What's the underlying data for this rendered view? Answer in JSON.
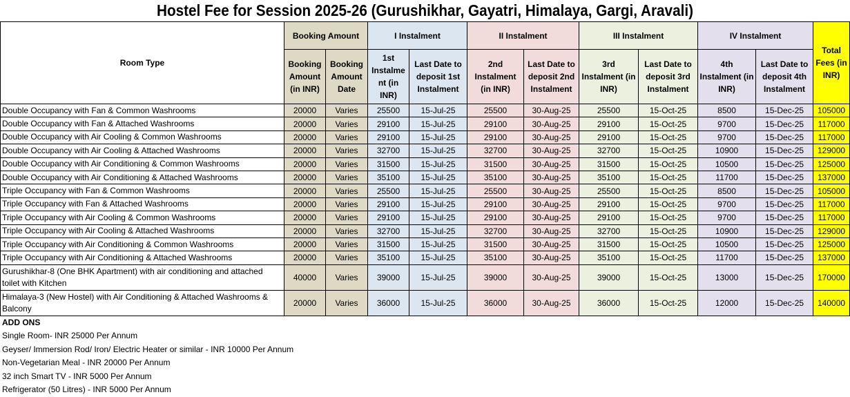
{
  "title": "Hostel Fee for Session 2025-26 (Gurushikhar, Gayatri, Himalaya, Gargi, Aravali)",
  "header": {
    "room_type": "Room Type",
    "booking_group": "Booking Amount",
    "instalment_groups": [
      "I Instalment",
      "II Instalment",
      "III Instalment",
      "IV Instalment"
    ],
    "total": "Total Fees (in INR)",
    "columns": [
      "Booking Amount (in INR)",
      "Booking Amount Date",
      "1st Instalment (in INR)",
      "Last Date to deposit 1st Instalment",
      "2nd Instalment (in INR)",
      "Last Date to deposit 2nd Instalment",
      "3rd Instalment (in INR)",
      "Last Date to deposit 3rd Instalment",
      "4th Instalment (in INR)",
      "Last Date to deposit 4th Instalment"
    ]
  },
  "rows": [
    [
      "Double Occupancy with Fan & Common Washrooms",
      20000,
      "Varies",
      25500,
      "15-Jul-25",
      25500,
      "30-Aug-25",
      25500,
      "15-Oct-25",
      8500,
      "15-Dec-25",
      105000
    ],
    [
      "Double Occupancy with Fan & Attached Washrooms",
      20000,
      "Varies",
      29100,
      "15-Jul-25",
      29100,
      "30-Aug-25",
      29100,
      "15-Oct-25",
      9700,
      "15-Dec-25",
      117000
    ],
    [
      "Double Occupancy with Air Cooling & Common Washrooms",
      20000,
      "Varies",
      29100,
      "15-Jul-25",
      29100,
      "30-Aug-25",
      29100,
      "15-Oct-25",
      9700,
      "15-Dec-25",
      117000
    ],
    [
      "Double Occupancy with Air Cooling & Attached Washrooms",
      20000,
      "Varies",
      32700,
      "15-Jul-25",
      32700,
      "30-Aug-25",
      32700,
      "15-Oct-25",
      10900,
      "15-Dec-25",
      129000
    ],
    [
      "Double Occupancy with Air Conditioning & Common Washrooms",
      20000,
      "Varies",
      31500,
      "15-Jul-25",
      31500,
      "30-Aug-25",
      31500,
      "15-Oct-25",
      10500,
      "15-Dec-25",
      125000
    ],
    [
      "Double Occupancy with Air Conditioning & Attached Washrooms",
      20000,
      "Varies",
      35100,
      "15-Jul-25",
      35100,
      "30-Aug-25",
      35100,
      "15-Oct-25",
      11700,
      "15-Dec-25",
      137000
    ],
    [
      "Triple Occupancy with Fan & Common Washrooms",
      20000,
      "Varies",
      25500,
      "15-Jul-25",
      25500,
      "30-Aug-25",
      25500,
      "15-Oct-25",
      8500,
      "15-Dec-25",
      105000
    ],
    [
      "Triple Occupancy with Fan & Attached Washrooms",
      20000,
      "Varies",
      29100,
      "15-Jul-25",
      29100,
      "30-Aug-25",
      29100,
      "15-Oct-25",
      9700,
      "15-Dec-25",
      117000
    ],
    [
      "Triple Occupancy with Air Cooling & Common Washrooms",
      20000,
      "Varies",
      29100,
      "15-Jul-25",
      29100,
      "30-Aug-25",
      29100,
      "15-Oct-25",
      9700,
      "15-Dec-25",
      117000
    ],
    [
      "Triple Occupancy with Air Cooling & Attached Washrooms",
      20000,
      "Varies",
      32700,
      "15-Jul-25",
      32700,
      "30-Aug-25",
      32700,
      "15-Oct-25",
      10900,
      "15-Dec-25",
      129000
    ],
    [
      "Triple Occupancy with Air Conditioning & Common Washrooms",
      20000,
      "Varies",
      31500,
      "15-Jul-25",
      31500,
      "30-Aug-25",
      31500,
      "15-Oct-25",
      10500,
      "15-Dec-25",
      125000
    ],
    [
      "Triple Occupancy with Air Conditioning & Attached Washrooms",
      20000,
      "Varies",
      35100,
      "15-Jul-25",
      35100,
      "30-Aug-25",
      35100,
      "15-Oct-25",
      11700,
      "15-Dec-25",
      137000
    ],
    [
      "Gurushikhar-8 (One BHK Apartment) with air conditioning and attached toilet with Kitchen",
      40000,
      "Varies",
      39000,
      "15-Jul-25",
      39000,
      "30-Aug-25",
      39000,
      "15-Oct-25",
      13000,
      "15-Dec-25",
      170000
    ],
    [
      "Himalaya-3 (New Hostel) with Air Conditioning & Attached Washrooms & Balcony",
      20000,
      "Varies",
      36000,
      "15-Jul-25",
      36000,
      "30-Aug-25",
      36000,
      "15-Oct-25",
      12000,
      "15-Dec-25",
      140000
    ]
  ],
  "add_ons": {
    "title": "ADD ONS",
    "items": [
      "Single Room- INR 25000 Per Annum",
      "Geyser/ Immersion Rod/ Iron/ Electric Heater or similar - INR 10000 Per Annum",
      "Non-Vegetarian Meal - INR 20000 Per Annum",
      "32 inch Smart TV - INR 5000 Per Annum",
      "Refrigerator (50 Litres) - INR 5000 Per Annum"
    ]
  }
}
